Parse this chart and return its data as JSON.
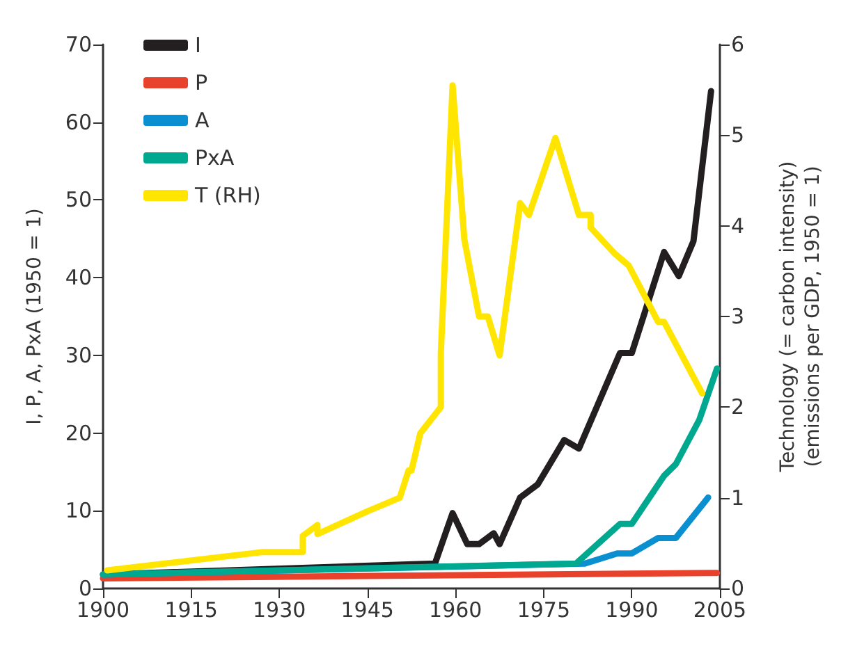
{
  "chart_data": {
    "type": "line",
    "ylabel": "I, P, A, PxA (1950 = 1)",
    "y2label": "Technology (= carbon intensity)\n(emissions per GDP, 1950 = 1)",
    "xlim": [
      1900,
      2005
    ],
    "xticks": [
      1900,
      1915,
      1930,
      1945,
      1960,
      1975,
      1990,
      2005
    ],
    "ylim": [
      0,
      70
    ],
    "yticks": [
      0,
      10,
      20,
      30,
      40,
      50,
      60,
      70
    ],
    "y2lim": [
      0,
      6
    ],
    "y2ticks": [
      0,
      1,
      2,
      3,
      4,
      5,
      6
    ],
    "grid": false,
    "legend": "top left",
    "line_style": "solid",
    "marker": "none",
    "series": [
      {
        "name": "I",
        "color": "#231f20",
        "x": [
          1900,
          1956.5,
          1959.5,
          1962,
          1964,
          1966.5,
          1967.5,
          1971,
          1974,
          1978.5,
          1981,
          1988,
          1990,
          1995.5,
          1998,
          2000.5,
          2003.5
        ],
        "values": [
          1.8,
          3.2,
          9.7,
          5.7,
          5.7,
          7.1,
          5.7,
          11.7,
          13.4,
          19.1,
          18,
          30.3,
          30.3,
          43.3,
          40.2,
          44.7,
          64
        ]
      },
      {
        "name": "P",
        "color": "#e8412c",
        "x": [
          1900,
          2004.5
        ],
        "values": [
          1.3,
          2.0
        ]
      },
      {
        "name": "A",
        "color": "#0a8fd0",
        "x": [
          1900,
          1982,
          1987.5,
          1990,
          1994.5,
          1997.5,
          2003
        ],
        "values": [
          1.8,
          3.2,
          4.5,
          4.5,
          6.5,
          6.5,
          11.7
        ]
      },
      {
        "name": "PxA",
        "color": "#00a88f",
        "x": [
          1900,
          1980.5,
          1988,
          1990,
          1995.5,
          1997.5,
          2001.5,
          2004.5
        ],
        "values": [
          1.8,
          3.2,
          8.3,
          8.3,
          14.5,
          16,
          21.7,
          28.3
        ]
      },
      {
        "name": "T (RH)",
        "color": "#ffe500",
        "axis": "y2",
        "x": [
          1900.7,
          1927,
          1934,
          1934,
          1936.5,
          1936.5,
          1945,
          1950.5,
          1952,
          1952.5,
          1954,
          1957.5,
          1957.5,
          1959.5,
          1961.5,
          1964,
          1965.5,
          1967.5,
          1971,
          1972.5,
          1977,
          1981,
          1983,
          1983,
          1987,
          1989.5,
          1994.5,
          1995.5,
          2002
        ],
        "values": [
          0.2,
          0.4,
          0.4,
          0.58,
          0.7,
          0.6,
          0.85,
          1.0,
          1.3,
          1.3,
          1.71,
          2.0,
          2.6,
          5.55,
          3.85,
          3.0,
          3.0,
          2.57,
          4.25,
          4.12,
          4.97,
          4.12,
          4.12,
          3.98,
          3.7,
          3.56,
          2.94,
          2.94,
          2.15
        ]
      }
    ]
  }
}
